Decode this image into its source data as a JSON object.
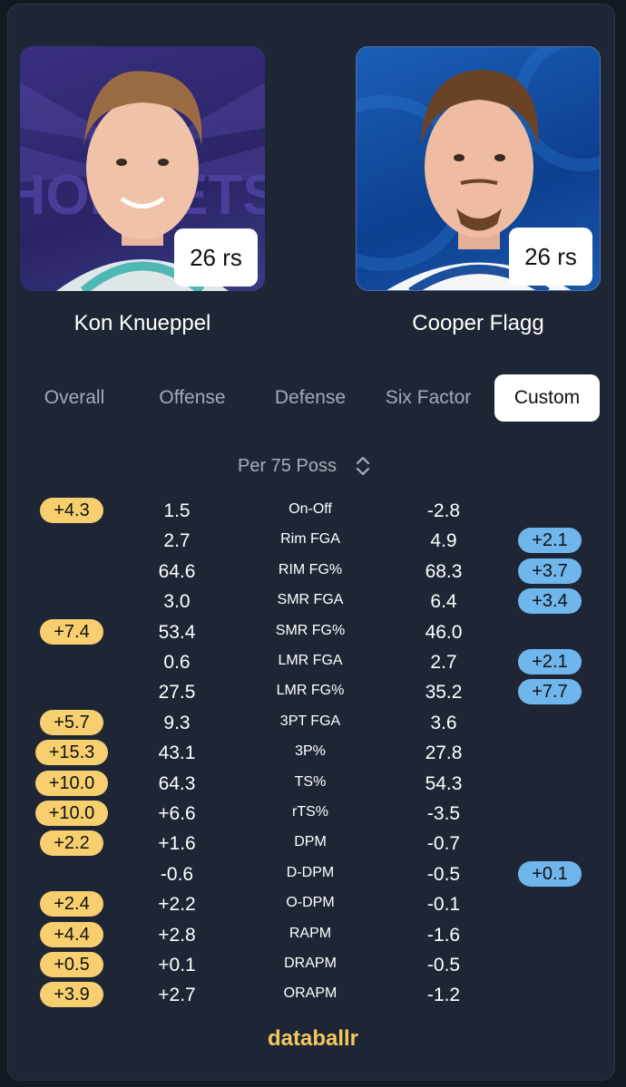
{
  "players": {
    "left": {
      "name": "Kon Knueppel",
      "games": "26 rs",
      "team_watermark": "HORNETS"
    },
    "right": {
      "name": "Cooper Flagg",
      "games": "26 rs"
    }
  },
  "tabs": [
    "Overall",
    "Offense",
    "Defense",
    "Six Factor",
    "Custom"
  ],
  "active_tab": "Custom",
  "sort_label": "Per 75 Poss",
  "colors": {
    "left_accent": "#f7cf6e",
    "right_accent": "#6fb6ec",
    "brand": "#f4c85e"
  },
  "rows": [
    {
      "metric": "On-Off",
      "left": "1.5",
      "right": "-2.8",
      "left_diff": "+4.3",
      "right_diff": null
    },
    {
      "metric": "Rim FGA",
      "left": "2.7",
      "right": "4.9",
      "left_diff": null,
      "right_diff": "+2.1"
    },
    {
      "metric": "RIM FG%",
      "left": "64.6",
      "right": "68.3",
      "left_diff": null,
      "right_diff": "+3.7"
    },
    {
      "metric": "SMR FGA",
      "left": "3.0",
      "right": "6.4",
      "left_diff": null,
      "right_diff": "+3.4"
    },
    {
      "metric": "SMR FG%",
      "left": "53.4",
      "right": "46.0",
      "left_diff": "+7.4",
      "right_diff": null
    },
    {
      "metric": "LMR FGA",
      "left": "0.6",
      "right": "2.7",
      "left_diff": null,
      "right_diff": "+2.1"
    },
    {
      "metric": "LMR FG%",
      "left": "27.5",
      "right": "35.2",
      "left_diff": null,
      "right_diff": "+7.7"
    },
    {
      "metric": "3PT FGA",
      "left": "9.3",
      "right": "3.6",
      "left_diff": "+5.7",
      "right_diff": null
    },
    {
      "metric": "3P%",
      "left": "43.1",
      "right": "27.8",
      "left_diff": "+15.3",
      "right_diff": null
    },
    {
      "metric": "TS%",
      "left": "64.3",
      "right": "54.3",
      "left_diff": "+10.0",
      "right_diff": null
    },
    {
      "metric": "rTS%",
      "left": "+6.6",
      "right": "-3.5",
      "left_diff": "+10.0",
      "right_diff": null
    },
    {
      "metric": "DPM",
      "left": "+1.6",
      "right": "-0.7",
      "left_diff": "+2.2",
      "right_diff": null
    },
    {
      "metric": "D-DPM",
      "left": "-0.6",
      "right": "-0.5",
      "left_diff": null,
      "right_diff": "+0.1"
    },
    {
      "metric": "O-DPM",
      "left": "+2.2",
      "right": "-0.1",
      "left_diff": "+2.4",
      "right_diff": null
    },
    {
      "metric": "RAPM",
      "left": "+2.8",
      "right": "-1.6",
      "left_diff": "+4.4",
      "right_diff": null
    },
    {
      "metric": "DRAPM",
      "left": "+0.1",
      "right": "-0.5",
      "left_diff": "+0.5",
      "right_diff": null
    },
    {
      "metric": "ORAPM",
      "left": "+2.7",
      "right": "-1.2",
      "left_diff": "+3.9",
      "right_diff": null
    }
  ],
  "brand": "databallr"
}
